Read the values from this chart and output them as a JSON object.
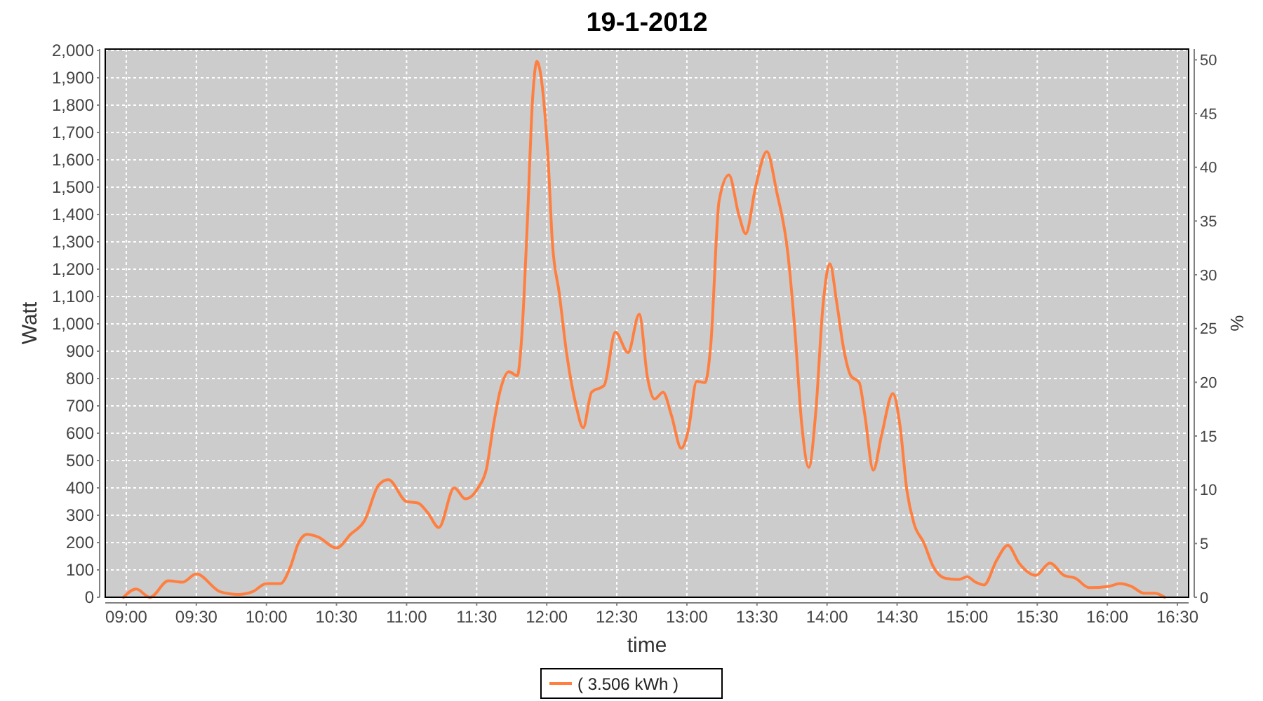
{
  "chart_data": {
    "type": "line",
    "title": "19-1-2012",
    "xlabel": "time",
    "ylabel": "Watt",
    "y2label": "%",
    "x": [
      8.98,
      9.07,
      9.17,
      9.3,
      9.4,
      9.5,
      9.67,
      9.8,
      9.9,
      10,
      10.1,
      10.17,
      10.23,
      10.29,
      10.37,
      10.5,
      10.6,
      10.7,
      10.8,
      10.87,
      11,
      11.08,
      11.15,
      11.23,
      11.34,
      11.42,
      11.51,
      11.57,
      11.62,
      11.67,
      11.73,
      11.79,
      11.82,
      11.86,
      11.9,
      11.93,
      11.97,
      12.01,
      12.04,
      12.09,
      12.14,
      12.21,
      12.26,
      12.32,
      12.41,
      12.49,
      12.58,
      12.66,
      12.72,
      12.77,
      12.83,
      12.89,
      12.96,
      13.01,
      13.07,
      13.13,
      13.17,
      13.23,
      13.3,
      13.37,
      13.42,
      13.49,
      13.57,
      13.64,
      13.72,
      13.77,
      13.82,
      13.87,
      13.92,
      13.97,
      14.02,
      14.07,
      14.12,
      14.17,
      14.23,
      14.27,
      14.33,
      14.39,
      14.47,
      14.52,
      14.57,
      14.62,
      14.69,
      14.76,
      14.84,
      14.94,
      15,
      15.06,
      15.12,
      15.21,
      15.29,
      15.37,
      15.49,
      15.59,
      15.69,
      15.77,
      15.87,
      16.01,
      16.09,
      16.17,
      16.26,
      16.34,
      16.41
    ],
    "series": [
      {
        "name": "( 3.506 kWh )",
        "color": "#ff7f40",
        "values": [
          0,
          30,
          0,
          60,
          55,
          85,
          20,
          10,
          20,
          50,
          50,
          110,
          200,
          230,
          220,
          180,
          230,
          280,
          410,
          430,
          350,
          345,
          310,
          255,
          400,
          360,
          400,
          470,
          630,
          760,
          825,
          810,
          940,
          1350,
          1830,
          1960,
          1860,
          1600,
          1300,
          1110,
          900,
          700,
          620,
          750,
          775,
          970,
          895,
          1035,
          800,
          725,
          750,
          665,
          545,
          610,
          790,
          785,
          920,
          1450,
          1545,
          1400,
          1330,
          1500,
          1630,
          1485,
          1260,
          980,
          630,
          475,
          680,
          1060,
          1220,
          1075,
          905,
          810,
          785,
          665,
          465,
          595,
          745,
          630,
          390,
          270,
          200,
          110,
          70,
          65,
          75,
          55,
          45,
          135,
          190,
          125,
          80,
          125,
          80,
          70,
          35,
          40,
          50,
          40,
          15,
          15,
          0
        ]
      }
    ],
    "xlim": [
      8.85,
      16.58
    ],
    "xticks": [
      {
        "value": 9,
        "label": "09:00"
      },
      {
        "value": 9.5,
        "label": "09:30"
      },
      {
        "value": 10,
        "label": "10:00"
      },
      {
        "value": 10.5,
        "label": "10:30"
      },
      {
        "value": 11,
        "label": "11:00"
      },
      {
        "value": 11.5,
        "label": "11:30"
      },
      {
        "value": 12,
        "label": "12:00"
      },
      {
        "value": 12.5,
        "label": "12:30"
      },
      {
        "value": 13,
        "label": "13:00"
      },
      {
        "value": 13.5,
        "label": "13:30"
      },
      {
        "value": 14,
        "label": "14:00"
      },
      {
        "value": 14.5,
        "label": "14:30"
      },
      {
        "value": 15,
        "label": "15:00"
      },
      {
        "value": 15.5,
        "label": "15:30"
      },
      {
        "value": 16,
        "label": "16:00"
      },
      {
        "value": 16.5,
        "label": "16:30"
      }
    ],
    "ylim": [
      0,
      2005
    ],
    "yticks": [
      0,
      100,
      200,
      300,
      400,
      500,
      600,
      700,
      800,
      900,
      {
        "value": 1000,
        "label": "1,000"
      },
      {
        "value": 1100,
        "label": "1,100"
      },
      {
        "value": 1200,
        "label": "1,200"
      },
      {
        "value": 1300,
        "label": "1,300"
      },
      {
        "value": 1400,
        "label": "1,400"
      },
      {
        "value": 1500,
        "label": "1,500"
      },
      {
        "value": 1600,
        "label": "1,600"
      },
      {
        "value": 1700,
        "label": "1,700"
      },
      {
        "value": 1800,
        "label": "1,800"
      },
      {
        "value": 1900,
        "label": "1,900"
      },
      {
        "value": 2000,
        "label": "2,000"
      }
    ],
    "y2lim": [
      0,
      51
    ],
    "y2ticks": [
      0,
      5,
      10,
      15,
      20,
      25,
      30,
      35,
      40,
      45,
      50
    ],
    "grid": true,
    "legend": "bottom",
    "line_style": "solid"
  }
}
